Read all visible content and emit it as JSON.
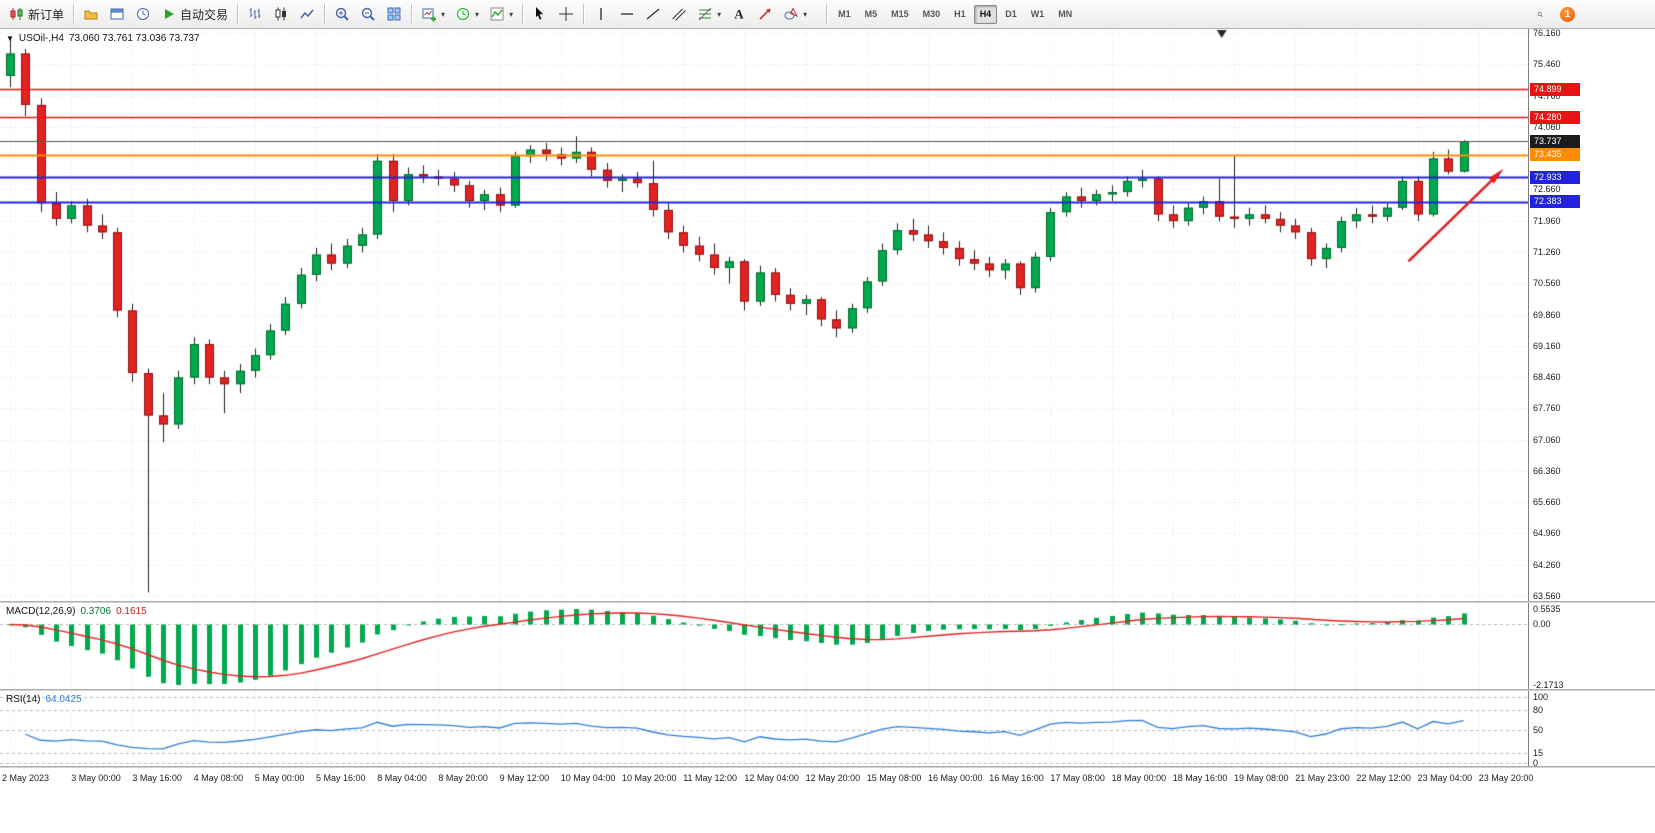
{
  "toolbar": {
    "groups": [
      {
        "items": [
          {
            "name": "new-order",
            "icon": "new-order-icon",
            "label": "新订单"
          }
        ]
      },
      {
        "items": [
          {
            "name": "profiles",
            "icon": "profile-icon"
          },
          {
            "name": "chart-window",
            "icon": "chart-window-icon"
          },
          {
            "name": "market-watch",
            "icon": "market-watch-icon"
          },
          {
            "name": "autotrading",
            "icon": "autotrading-icon",
            "label": "自动交易"
          }
        ]
      },
      {
        "items": [
          {
            "name": "bar-chart",
            "icon": "bar-chart-icon"
          },
          {
            "name": "candle-chart",
            "icon": "candle-chart-icon"
          },
          {
            "name": "line-chart",
            "icon": "line-chart-icon"
          }
        ]
      },
      {
        "items": [
          {
            "name": "zoom-in",
            "icon": "zoom-in-icon"
          },
          {
            "name": "zoom-out",
            "icon": "zoom-out-icon"
          },
          {
            "name": "tile-windows",
            "icon": "tile-windows-icon"
          }
        ]
      },
      {
        "items": [
          {
            "name": "new-chart",
            "icon": "new-chart-icon",
            "dropdown": true
          },
          {
            "name": "periods",
            "icon": "period-icon",
            "dropdown": true
          },
          {
            "name": "templates",
            "icon": "indicators-icon",
            "dropdown": true
          }
        ]
      },
      {
        "items": [
          {
            "name": "cursor",
            "icon": "cursor-icon"
          },
          {
            "name": "crosshair",
            "icon": "crosshair-icon"
          }
        ]
      },
      {
        "items": [
          {
            "name": "vertical-line",
            "icon": "vline-icon"
          },
          {
            "name": "horizontal-line",
            "icon": "hline-icon"
          },
          {
            "name": "trendline",
            "icon": "trendline-icon"
          },
          {
            "name": "channel",
            "icon": "channel-icon"
          },
          {
            "name": "fibonacci",
            "icon": "fibonacci-icon",
            "dropdown": true
          },
          {
            "name": "text",
            "icon": "text-icon"
          },
          {
            "name": "arrows",
            "icon": "arrow-label-icon"
          },
          {
            "name": "shapes",
            "icon": "shapes-icon",
            "dropdown": true
          }
        ]
      }
    ],
    "timeframes": [
      "M1",
      "M5",
      "M15",
      "M30",
      "H1",
      "H4",
      "D1",
      "W1",
      "MN"
    ],
    "active_timeframe": "H4",
    "notifications": "1"
  },
  "chart": {
    "one_click_glyph": "▼",
    "title_symbol": "USOil-,H4",
    "title_ohlc": "73.060 73.761 73.036 73.737"
  },
  "chart_data": {
    "type": "candlestick",
    "symbol": "USOil-",
    "period": "H4",
    "current_bar": {
      "open": 73.06,
      "high": 73.761,
      "low": 73.036,
      "close": 73.737
    },
    "price_axis": {
      "min": 63.56,
      "max": 76.16,
      "step": 0.7,
      "labels": [
        "76.160",
        "75.460",
        "74.760",
        "74.060",
        "73.360",
        "72.660",
        "71.960",
        "71.260",
        "70.560",
        "69.860",
        "69.160",
        "68.460",
        "67.760",
        "67.060",
        "66.360",
        "65.660",
        "64.960",
        "64.260",
        "63.560"
      ]
    },
    "time_labels": [
      "2 May 2023",
      "3 May 00:00",
      "3 May 16:00",
      "4 May 08:00",
      "5 May 00:00",
      "5 May 16:00",
      "8 May 04:00",
      "8 May 20:00",
      "9 May 12:00",
      "10 May 04:00",
      "10 May 20:00",
      "11 May 12:00",
      "12 May 04:00",
      "12 May 20:00",
      "15 May 08:00",
      "16 May 00:00",
      "16 May 16:00",
      "17 May 08:00",
      "18 May 00:00",
      "18 May 16:00",
      "19 May 08:00",
      "21 May 23:00",
      "22 May 12:00",
      "23 May 04:00",
      "23 May 20:00"
    ],
    "candles": [
      [
        75.2,
        76.05,
        74.95,
        75.7
      ],
      [
        75.7,
        75.8,
        74.3,
        74.55
      ],
      [
        74.55,
        74.7,
        72.15,
        72.35
      ],
      [
        72.35,
        72.6,
        71.85,
        72.0
      ],
      [
        72.0,
        72.4,
        71.9,
        72.3
      ],
      [
        72.3,
        72.45,
        71.7,
        71.85
      ],
      [
        71.85,
        72.1,
        71.55,
        71.7
      ],
      [
        71.7,
        71.8,
        69.8,
        69.95
      ],
      [
        69.95,
        70.1,
        68.35,
        68.55
      ],
      [
        68.55,
        68.65,
        63.64,
        67.6
      ],
      [
        67.6,
        68.1,
        67.0,
        67.4
      ],
      [
        67.4,
        68.6,
        67.3,
        68.45
      ],
      [
        68.45,
        69.35,
        68.3,
        69.2
      ],
      [
        69.2,
        69.3,
        68.3,
        68.45
      ],
      [
        68.45,
        68.6,
        67.65,
        68.3
      ],
      [
        68.3,
        68.75,
        68.1,
        68.6
      ],
      [
        68.6,
        69.1,
        68.45,
        68.95
      ],
      [
        68.95,
        69.65,
        68.85,
        69.5
      ],
      [
        69.5,
        70.25,
        69.4,
        70.1
      ],
      [
        70.1,
        70.9,
        70.0,
        70.75
      ],
      [
        70.75,
        71.35,
        70.6,
        71.2
      ],
      [
        71.2,
        71.45,
        70.85,
        71.0
      ],
      [
        71.0,
        71.55,
        70.9,
        71.4
      ],
      [
        71.4,
        71.8,
        71.25,
        71.65
      ],
      [
        71.65,
        73.45,
        71.55,
        73.3
      ],
      [
        73.3,
        73.45,
        72.15,
        72.4
      ],
      [
        72.4,
        73.15,
        72.3,
        73.0
      ],
      [
        73.0,
        73.2,
        72.8,
        72.95
      ],
      [
        72.95,
        73.1,
        72.75,
        72.9
      ],
      [
        72.9,
        73.05,
        72.6,
        72.75
      ],
      [
        72.75,
        72.85,
        72.25,
        72.4
      ],
      [
        72.4,
        72.65,
        72.2,
        72.55
      ],
      [
        72.55,
        72.7,
        72.15,
        72.3
      ],
      [
        72.3,
        73.5,
        72.25,
        73.4
      ],
      [
        73.4,
        73.65,
        73.25,
        73.55
      ],
      [
        73.55,
        73.7,
        73.3,
        73.45
      ],
      [
        73.45,
        73.6,
        73.2,
        73.35
      ],
      [
        73.35,
        73.85,
        73.25,
        73.5
      ],
      [
        73.5,
        73.6,
        72.95,
        73.1
      ],
      [
        73.1,
        73.25,
        72.7,
        72.85
      ],
      [
        72.85,
        73.0,
        72.6,
        72.9
      ],
      [
        72.9,
        73.05,
        72.7,
        72.8
      ],
      [
        72.8,
        73.3,
        72.05,
        72.2
      ],
      [
        72.2,
        72.35,
        71.55,
        71.7
      ],
      [
        71.7,
        71.85,
        71.25,
        71.4
      ],
      [
        71.4,
        71.6,
        71.05,
        71.2
      ],
      [
        71.2,
        71.45,
        70.75,
        70.9
      ],
      [
        70.9,
        71.15,
        70.55,
        71.05
      ],
      [
        71.05,
        71.1,
        69.95,
        70.15
      ],
      [
        70.15,
        70.95,
        70.05,
        70.8
      ],
      [
        70.8,
        70.9,
        70.15,
        70.3
      ],
      [
        70.3,
        70.45,
        69.95,
        70.1
      ],
      [
        70.1,
        70.3,
        69.85,
        70.2
      ],
      [
        70.2,
        70.25,
        69.6,
        69.75
      ],
      [
        69.75,
        69.95,
        69.35,
        69.55
      ],
      [
        69.55,
        70.1,
        69.45,
        70.0
      ],
      [
        70.0,
        70.7,
        69.9,
        70.6
      ],
      [
        70.6,
        71.45,
        70.5,
        71.3
      ],
      [
        71.3,
        71.9,
        71.2,
        71.75
      ],
      [
        71.75,
        72.0,
        71.5,
        71.65
      ],
      [
        71.65,
        71.85,
        71.35,
        71.5
      ],
      [
        71.5,
        71.7,
        71.2,
        71.35
      ],
      [
        71.35,
        71.5,
        70.95,
        71.1
      ],
      [
        71.1,
        71.3,
        70.85,
        71.0
      ],
      [
        71.0,
        71.15,
        70.7,
        70.85
      ],
      [
        70.85,
        71.1,
        70.65,
        71.0
      ],
      [
        71.0,
        71.05,
        70.3,
        70.45
      ],
      [
        70.45,
        71.25,
        70.35,
        71.15
      ],
      [
        71.15,
        72.25,
        71.05,
        72.15
      ],
      [
        72.15,
        72.6,
        72.05,
        72.5
      ],
      [
        72.5,
        72.7,
        72.25,
        72.4
      ],
      [
        72.4,
        72.65,
        72.3,
        72.55
      ],
      [
        72.55,
        72.75,
        72.4,
        72.6
      ],
      [
        72.6,
        72.95,
        72.5,
        72.85
      ],
      [
        72.85,
        73.1,
        72.7,
        72.9
      ],
      [
        72.9,
        72.95,
        71.95,
        72.1
      ],
      [
        72.1,
        72.3,
        71.8,
        71.95
      ],
      [
        71.95,
        72.35,
        71.85,
        72.25
      ],
      [
        72.25,
        72.5,
        72.1,
        72.4
      ],
      [
        72.4,
        72.9,
        71.95,
        72.05
      ],
      [
        72.05,
        73.43,
        71.8,
        72.0
      ],
      [
        72.0,
        72.25,
        71.85,
        72.1
      ],
      [
        72.1,
        72.3,
        71.9,
        72.0
      ],
      [
        72.0,
        72.15,
        71.7,
        71.85
      ],
      [
        71.85,
        72.0,
        71.55,
        71.7
      ],
      [
        71.7,
        71.8,
        70.95,
        71.1
      ],
      [
        71.1,
        71.45,
        70.9,
        71.35
      ],
      [
        71.35,
        72.05,
        71.25,
        71.95
      ],
      [
        71.95,
        72.25,
        71.8,
        72.1
      ],
      [
        72.1,
        72.3,
        71.9,
        72.05
      ],
      [
        72.05,
        72.35,
        71.95,
        72.25
      ],
      [
        72.25,
        72.95,
        72.2,
        72.85
      ],
      [
        72.85,
        72.95,
        71.95,
        72.1
      ],
      [
        72.1,
        73.5,
        72.05,
        73.35
      ],
      [
        73.35,
        73.55,
        73.0,
        73.06
      ],
      [
        73.06,
        73.761,
        73.036,
        73.737
      ]
    ],
    "hlines": [
      {
        "price": 74.899,
        "label": "74.899",
        "color": "#e81414",
        "width": 1.6
      },
      {
        "price": 74.28,
        "label": "74.280",
        "color": "#e81414",
        "width": 1.6
      },
      {
        "price": 73.435,
        "label": "73.435",
        "color": "#ff8c00",
        "width": 2
      },
      {
        "price": 72.933,
        "label": "72.933",
        "color": "#2222e0",
        "width": 2
      },
      {
        "price": 72.383,
        "label": "72.383",
        "color": "#2222e0",
        "width": 2
      }
    ],
    "bid_line": {
      "price": 73.737,
      "label": "73.737",
      "color": "#555555",
      "badge_color": "#1c1c1c"
    },
    "arrow": {
      "from_index": 91.4,
      "from_price": 71.05,
      "to_index": 97.2,
      "to_price": 72.98,
      "color": "#e02020"
    },
    "shift_marker_index": 79.2,
    "indicators": {
      "macd": {
        "name": "MACD(12,26,9)",
        "value_main": "0.3706",
        "value_signal": "0.1615",
        "fast": 12,
        "slow": 26,
        "signal": 9,
        "scale_max": 0.5535,
        "scale_min": -2.1713,
        "scale_labels": [
          "0.5535",
          "0.00",
          "-2.1713"
        ],
        "hist_color": "#00a94e",
        "signal_color": "#e32222"
      },
      "rsi": {
        "name": "RSI(14)",
        "value": "64.0425",
        "period": 14,
        "levels": [
          80,
          50,
          15
        ],
        "scale_labels": [
          "100",
          "80",
          "50",
          "15",
          "0"
        ],
        "line_color": "#2f7ed8"
      }
    },
    "colors": {
      "up": "#00a94e",
      "down": "#e32222",
      "wick": "#222222",
      "grid": "#e6e6e6",
      "background": "#ffffff"
    }
  }
}
